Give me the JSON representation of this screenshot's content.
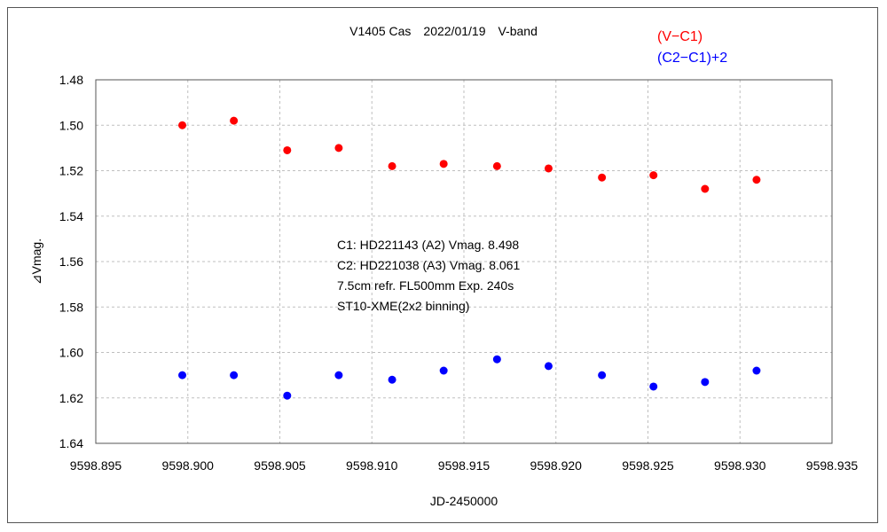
{
  "chart_data": {
    "type": "scatter",
    "title": "V1405 Cas　2022/01/19　V-band",
    "xlabel": "JD-2450000",
    "ylabel": "⊿Vmag.",
    "xlim": [
      9598.895,
      9598.935
    ],
    "ylim": [
      1.48,
      1.64
    ],
    "y_inverted": true,
    "x_ticks": [
      "9598.895",
      "9598.900",
      "9598.905",
      "9598.910",
      "9598.915",
      "9598.920",
      "9598.925",
      "9598.930",
      "9598.935"
    ],
    "y_ticks": [
      "1.48",
      "1.50",
      "1.52",
      "1.54",
      "1.56",
      "1.58",
      "1.60",
      "1.62",
      "1.64"
    ],
    "grid": true,
    "legend_position": "top-right",
    "series": [
      {
        "name": "(V−C1)",
        "color": "#ff0000",
        "x": [
          9598.8997,
          9598.9025,
          9598.9054,
          9598.9082,
          9598.9111,
          9598.9139,
          9598.9168,
          9598.9196,
          9598.9225,
          9598.9253,
          9598.9281,
          9598.9309
        ],
        "y": [
          1.5,
          1.498,
          1.511,
          1.51,
          1.518,
          1.517,
          1.518,
          1.519,
          1.523,
          1.522,
          1.528,
          1.524
        ]
      },
      {
        "name": "(C2−C1)+2",
        "color": "#0000ff",
        "x": [
          9598.8997,
          9598.9025,
          9598.9054,
          9598.9082,
          9598.9111,
          9598.9139,
          9598.9168,
          9598.9196,
          9598.9225,
          9598.9253,
          9598.9281,
          9598.9309
        ],
        "y": [
          1.61,
          1.61,
          1.619,
          1.61,
          1.612,
          1.608,
          1.603,
          1.606,
          1.61,
          1.615,
          1.613,
          1.608
        ]
      }
    ],
    "annotations": [
      "C1: HD221143 (A2) Vmag. 8.498",
      "C2: HD221038 (A3) Vmag. 8.061",
      "7.5cm refr. FL500mm Exp. 240s",
      "ST10-XME(2x2 binning)"
    ]
  }
}
